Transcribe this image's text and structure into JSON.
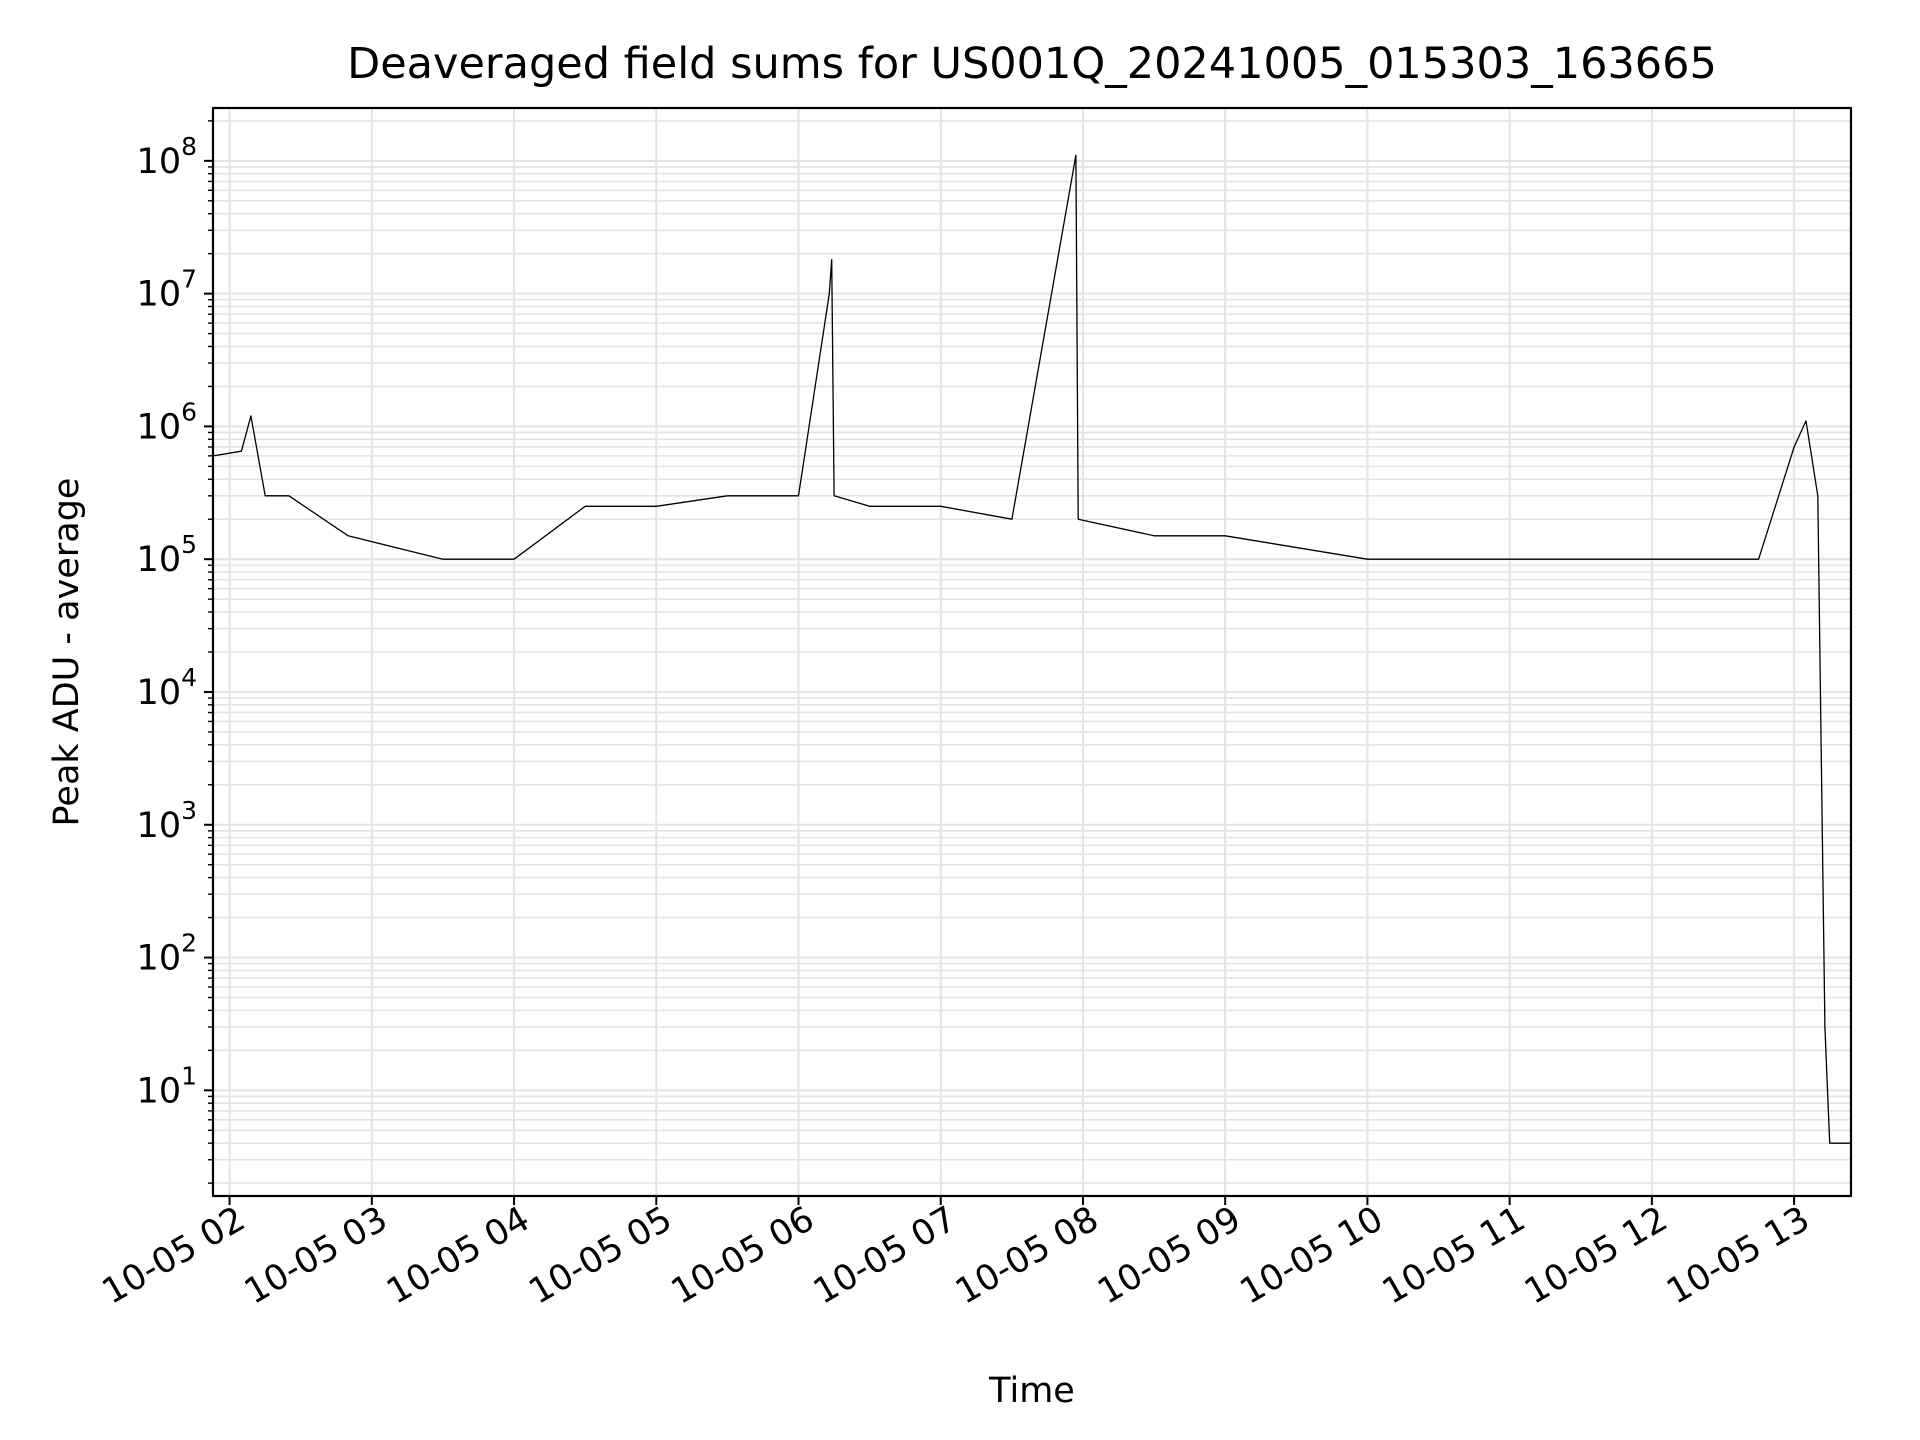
{
  "chart_data": {
    "type": "line",
    "title": "Deaveraged field sums for US001Q_20241005_015303_163665",
    "xlabel": "Time",
    "ylabel": "Peak ADU - average",
    "yscale": "log",
    "ylim": [
      1.6,
      250000000
    ],
    "xlim": [
      "2024-10-05 01:53",
      "2024-10-05 13:24"
    ],
    "grid": true,
    "x_tick_labels": [
      "10-05 02",
      "10-05 03",
      "10-05 04",
      "10-05 05",
      "10-05 06",
      "10-05 07",
      "10-05 08",
      "10-05 09",
      "10-05 10",
      "10-05 11",
      "10-05 12",
      "10-05 13"
    ],
    "y_tick_labels": [
      {
        "base": "10",
        "exp": "1"
      },
      {
        "base": "10",
        "exp": "2"
      },
      {
        "base": "10",
        "exp": "3"
      },
      {
        "base": "10",
        "exp": "4"
      },
      {
        "base": "10",
        "exp": "5"
      },
      {
        "base": "10",
        "exp": "6"
      },
      {
        "base": "10",
        "exp": "7"
      },
      {
        "base": "10",
        "exp": "8"
      }
    ],
    "color": "#000000",
    "series": [
      {
        "values_note_free": true,
        "x": [
          "2024-10-05 01:53",
          "2024-10-05 02:05",
          "2024-10-05 02:09",
          "2024-10-05 02:15",
          "2024-10-05 02:25",
          "2024-10-05 02:50",
          "2024-10-05 03:30",
          "2024-10-05 04:00",
          "2024-10-05 04:30",
          "2024-10-05 05:00",
          "2024-10-05 05:30",
          "2024-10-05 06:00",
          "2024-10-05 06:13",
          "2024-10-05 06:14",
          "2024-10-05 06:15",
          "2024-10-05 06:30",
          "2024-10-05 07:00",
          "2024-10-05 07:30",
          "2024-10-05 07:57",
          "2024-10-05 07:58",
          "2024-10-05 08:30",
          "2024-10-05 09:00",
          "2024-10-05 10:00",
          "2024-10-05 11:00",
          "2024-10-05 12:00",
          "2024-10-05 12:45",
          "2024-10-05 13:00",
          "2024-10-05 13:05",
          "2024-10-05 13:10",
          "2024-10-05 13:13",
          "2024-10-05 13:15",
          "2024-10-05 13:24"
        ],
        "y": [
          600000,
          650000,
          1200000,
          300000,
          300000,
          150000,
          100000,
          100000,
          250000,
          250000,
          300000,
          300000,
          10000000,
          18000000,
          300000,
          250000,
          250000,
          200000,
          110000000,
          200000,
          150000,
          150000,
          100000,
          100000,
          100000,
          100000,
          700000,
          1100000,
          300000,
          30,
          4,
          4
        ]
      }
    ]
  }
}
